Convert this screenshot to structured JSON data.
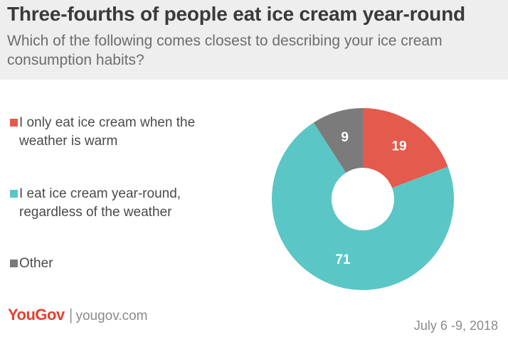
{
  "header": {
    "title": "Three-fourths of people eat ice cream year-round",
    "subtitle": "Which of the following comes closest to describing your ice cream consumption habits?"
  },
  "chart_data": {
    "type": "pie",
    "donut": true,
    "categories": [
      "I only eat ice cream when the weather is warm",
      "I eat ice cream year-round, regardless of the weather",
      "Other"
    ],
    "values": [
      19,
      71,
      9
    ],
    "colors": [
      "#e45a4c",
      "#5bc6c6",
      "#7b7b7b"
    ],
    "legend_placement": "left"
  },
  "legend": {
    "items": [
      {
        "label": "I only eat ice cream when the weather is warm",
        "color": "#e45a4c"
      },
      {
        "label": "I eat ice cream year-round, regardless of the weather",
        "color": "#5bc6c6"
      },
      {
        "label": "Other",
        "color": "#7b7b7b"
      }
    ]
  },
  "footer": {
    "brand": "YouGov",
    "separator": "|",
    "url": "yougov.com",
    "date": "July 6 -9, 2018"
  }
}
